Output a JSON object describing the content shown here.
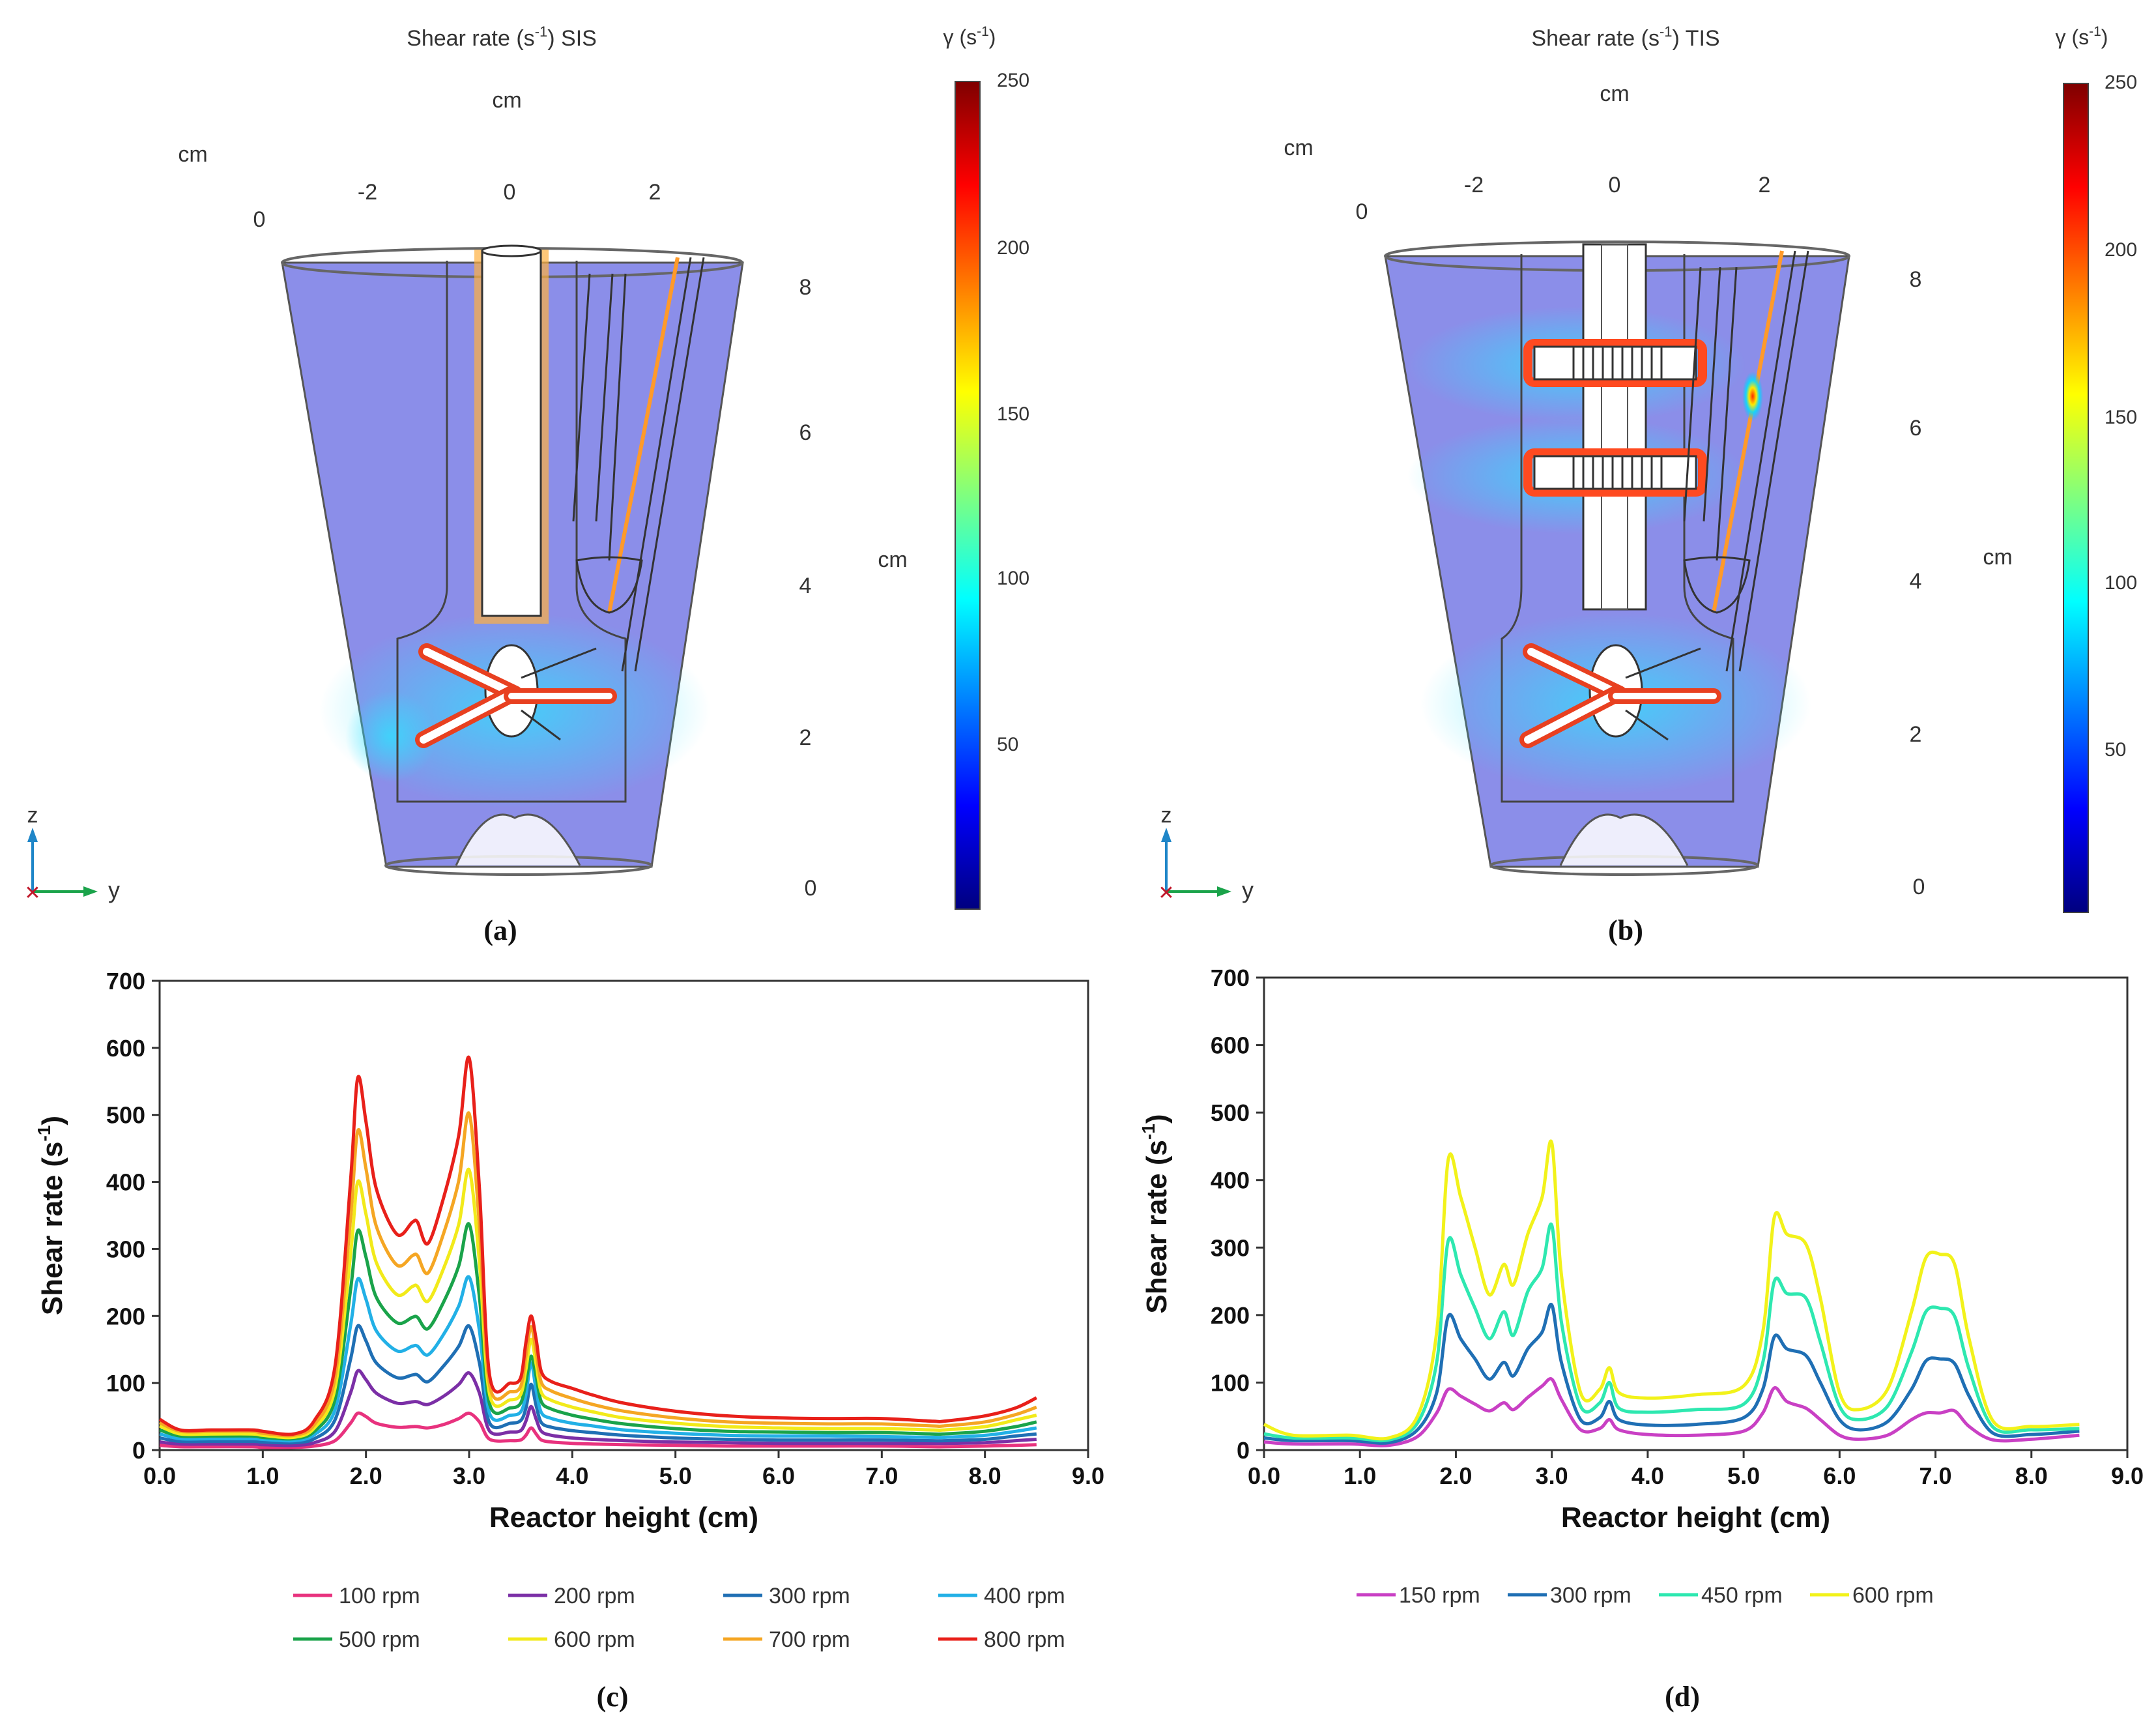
{
  "panels": {
    "a": {
      "title": "Shear rate (s",
      "title_sup": "-1",
      "title_suffix": ") SIS",
      "caption": "(a)",
      "colorbar_label": "γ (s",
      "colorbar_label_sup": "-1",
      "colorbar_label_suffix": ")",
      "colorbar_ticks": [
        "250",
        "200",
        "150",
        "100",
        "50"
      ],
      "z_axis_ticks": [
        "8",
        "6",
        "4",
        "2",
        "0"
      ],
      "y_axis_ticks": [
        "-2",
        "0",
        "2"
      ],
      "x_axis_tick": "0",
      "unit_top": "cm",
      "unit_left": "cm",
      "unit_right": "cm",
      "triad_z": "z",
      "triad_y": "y"
    },
    "b": {
      "title": "Shear rate (s",
      "title_sup": "-1",
      "title_suffix": ") TIS",
      "caption": "(b)",
      "colorbar_label": "γ (s",
      "colorbar_label_sup": "-1",
      "colorbar_label_suffix": ")",
      "colorbar_ticks": [
        "250",
        "200",
        "150",
        "100",
        "50"
      ],
      "z_axis_ticks": [
        "8",
        "6",
        "4",
        "2",
        "0"
      ],
      "y_axis_ticks": [
        "-2",
        "0",
        "2"
      ],
      "x_axis_tick": "0",
      "unit_top": "cm",
      "unit_left": "cm",
      "unit_right": "cm",
      "triad_z": "z",
      "triad_y": "y"
    },
    "c": {
      "caption": "(c)"
    },
    "d": {
      "caption": "(d)"
    }
  },
  "colors": {
    "colormap": [
      "#00007f",
      "#0000ff",
      "#007fff",
      "#00ffff",
      "#7fff7f",
      "#ffff00",
      "#ff7f00",
      "#ff0000",
      "#7f0000"
    ],
    "fluid": "#7b7ee6",
    "outline": "#333333"
  },
  "chart_data": [
    {
      "id": "c",
      "type": "line",
      "title": "",
      "xlabel": "Reactor height (cm)",
      "ylabel": "Shear rate (s",
      "ylabel_sup": "-1",
      "ylabel_suffix": ")",
      "xlim": [
        0,
        9
      ],
      "ylim": [
        0,
        700
      ],
      "xticks": [
        "0.0",
        "1.0",
        "2.0",
        "3.0",
        "4.0",
        "5.0",
        "6.0",
        "7.0",
        "8.0",
        "9.0"
      ],
      "yticks": [
        "0",
        "100",
        "200",
        "300",
        "400",
        "500",
        "600",
        "700"
      ],
      "x": [
        0,
        0.2,
        0.5,
        0.9,
        1.0,
        1.3,
        1.5,
        1.7,
        1.85,
        1.92,
        2.0,
        2.1,
        2.3,
        2.45,
        2.5,
        2.6,
        2.75,
        2.9,
        3.0,
        3.1,
        3.2,
        3.4,
        3.5,
        3.55,
        3.6,
        3.65,
        3.7,
        3.8,
        4.0,
        4.2,
        4.5,
        5.0,
        5.5,
        6.0,
        6.5,
        7.0,
        7.5,
        7.6,
        8.0,
        8.3,
        8.5
      ],
      "legend": "bottom",
      "series": [
        {
          "name": "100 rpm",
          "color": "#e8327e",
          "values": [
            7,
            5,
            5,
            5,
            4,
            4,
            6,
            14,
            40,
            55,
            50,
            40,
            34,
            35,
            35,
            33,
            38,
            47,
            55,
            42,
            16,
            14,
            15,
            22,
            33,
            24,
            15,
            12,
            10,
            9,
            8,
            7,
            6,
            6,
            6,
            6,
            5,
            5,
            6,
            7,
            8
          ]
        },
        {
          "name": "200 rpm",
          "color": "#7b2fa6",
          "values": [
            12,
            9,
            9,
            9,
            8,
            7,
            11,
            28,
            85,
            118,
            105,
            85,
            70,
            72,
            72,
            68,
            80,
            98,
            115,
            85,
            28,
            27,
            29,
            43,
            65,
            46,
            28,
            22,
            18,
            16,
            14,
            12,
            11,
            10,
            10,
            10,
            10,
            10,
            11,
            14,
            16
          ]
        },
        {
          "name": "300 rpm",
          "color": "#1f6fb4",
          "values": [
            18,
            13,
            13,
            13,
            12,
            11,
            17,
            45,
            135,
            185,
            163,
            130,
            108,
            112,
            112,
            102,
            125,
            155,
            185,
            130,
            40,
            40,
            44,
            62,
            98,
            66,
            41,
            34,
            29,
            26,
            22,
            18,
            16,
            15,
            15,
            15,
            14,
            14,
            16,
            21,
            24
          ]
        },
        {
          "name": "400 rpm",
          "color": "#22b0e6",
          "values": [
            24,
            17,
            17,
            17,
            16,
            14,
            23,
            60,
            185,
            255,
            225,
            178,
            148,
            155,
            155,
            142,
            172,
            215,
            258,
            178,
            54,
            52,
            57,
            82,
            130,
            89,
            56,
            47,
            40,
            36,
            30,
            25,
            22,
            21,
            21,
            20,
            19,
            19,
            22,
            28,
            33
          ]
        },
        {
          "name": "500 rpm",
          "color": "#1aa34a",
          "values": [
            30,
            21,
            21,
            21,
            19,
            17,
            28,
            76,
            238,
            327,
            288,
            228,
            190,
            198,
            198,
            181,
            220,
            275,
            337,
            228,
            68,
            63,
            70,
            101,
            140,
            110,
            72,
            61,
            52,
            46,
            39,
            32,
            28,
            27,
            26,
            26,
            24,
            24,
            28,
            35,
            42
          ]
        },
        {
          "name": "600 rpm",
          "color": "#f2ea1a",
          "values": [
            36,
            24,
            24,
            24,
            22,
            19,
            33,
            92,
            290,
            400,
            352,
            280,
            232,
            244,
            244,
            222,
            270,
            337,
            418,
            280,
            82,
            75,
            83,
            120,
            165,
            128,
            86,
            74,
            64,
            57,
            48,
            40,
            35,
            33,
            32,
            32,
            30,
            30,
            35,
            45,
            52
          ]
        },
        {
          "name": "700 rpm",
          "color": "#f5a623",
          "values": [
            41,
            28,
            28,
            28,
            25,
            22,
            38,
            108,
            345,
            476,
            420,
            334,
            276,
            290,
            290,
            264,
            322,
            402,
            502,
            334,
            96,
            87,
            95,
            140,
            184,
            146,
            101,
            88,
            77,
            68,
            58,
            48,
            42,
            40,
            39,
            39,
            36,
            36,
            42,
            53,
            64
          ]
        },
        {
          "name": "800 rpm",
          "color": "#e8201a",
          "values": [
            46,
            30,
            30,
            30,
            28,
            24,
            44,
            125,
            400,
            555,
            490,
            390,
            322,
            340,
            340,
            308,
            375,
            470,
            585,
            390,
            110,
            100,
            108,
            160,
            200,
            165,
            117,
            102,
            92,
            82,
            70,
            58,
            51,
            48,
            47,
            47,
            43,
            43,
            51,
            63,
            78
          ]
        }
      ]
    },
    {
      "id": "d",
      "type": "line",
      "title": "",
      "xlabel": "Reactor height (cm)",
      "ylabel": "Shear rate (s",
      "ylabel_sup": "-1",
      "ylabel_suffix": ")",
      "xlim": [
        0,
        9
      ],
      "ylim": [
        0,
        700
      ],
      "xticks": [
        "0.0",
        "1.0",
        "2.0",
        "3.0",
        "4.0",
        "5.0",
        "6.0",
        "7.0",
        "8.0",
        "9.0"
      ],
      "yticks": [
        "0",
        "100",
        "200",
        "300",
        "400",
        "500",
        "600",
        "700"
      ],
      "x": [
        0,
        0.3,
        0.9,
        1.3,
        1.6,
        1.8,
        1.92,
        2.05,
        2.2,
        2.35,
        2.5,
        2.6,
        2.75,
        2.9,
        3.0,
        3.1,
        3.3,
        3.5,
        3.6,
        3.7,
        4.0,
        4.5,
        5.0,
        5.2,
        5.32,
        5.45,
        5.65,
        5.8,
        6.0,
        6.2,
        6.5,
        6.75,
        6.9,
        7.05,
        7.2,
        7.35,
        7.6,
        8.0,
        8.5
      ],
      "legend": "bottom",
      "series": [
        {
          "name": "150 rpm",
          "color": "#c940c4",
          "values": [
            12,
            9,
            9,
            7,
            20,
            55,
            90,
            80,
            68,
            58,
            70,
            60,
            78,
            95,
            105,
            75,
            30,
            32,
            45,
            30,
            23,
            22,
            28,
            55,
            92,
            72,
            62,
            45,
            22,
            16,
            22,
            45,
            55,
            55,
            58,
            35,
            15,
            16,
            22
          ]
        },
        {
          "name": "300 rpm",
          "color": "#1f6fb4",
          "values": [
            18,
            14,
            14,
            11,
            30,
            85,
            198,
            165,
            135,
            105,
            130,
            110,
            150,
            175,
            215,
            130,
            45,
            48,
            72,
            45,
            37,
            38,
            48,
            90,
            168,
            150,
            140,
            100,
            45,
            30,
            42,
            90,
            132,
            135,
            128,
            80,
            25,
            23,
            28
          ]
        },
        {
          "name": "450 rpm",
          "color": "#2ee8b0",
          "values": [
            24,
            18,
            18,
            15,
            40,
            130,
            310,
            260,
            210,
            165,
            205,
            170,
            235,
            270,
            333,
            190,
            65,
            70,
            100,
            62,
            56,
            60,
            68,
            130,
            250,
            232,
            225,
            160,
            65,
            45,
            65,
            145,
            205,
            210,
            198,
            120,
            34,
            30,
            32
          ]
        },
        {
          "name": "600 rpm",
          "color": "#f2f21a",
          "values": [
            38,
            22,
            22,
            18,
            50,
            175,
            430,
            375,
            300,
            230,
            275,
            245,
            320,
            375,
            455,
            260,
            85,
            90,
            122,
            85,
            77,
            82,
            95,
            175,
            345,
            320,
            305,
            225,
            85,
            60,
            90,
            205,
            285,
            290,
            275,
            165,
            43,
            35,
            38
          ]
        }
      ]
    }
  ]
}
